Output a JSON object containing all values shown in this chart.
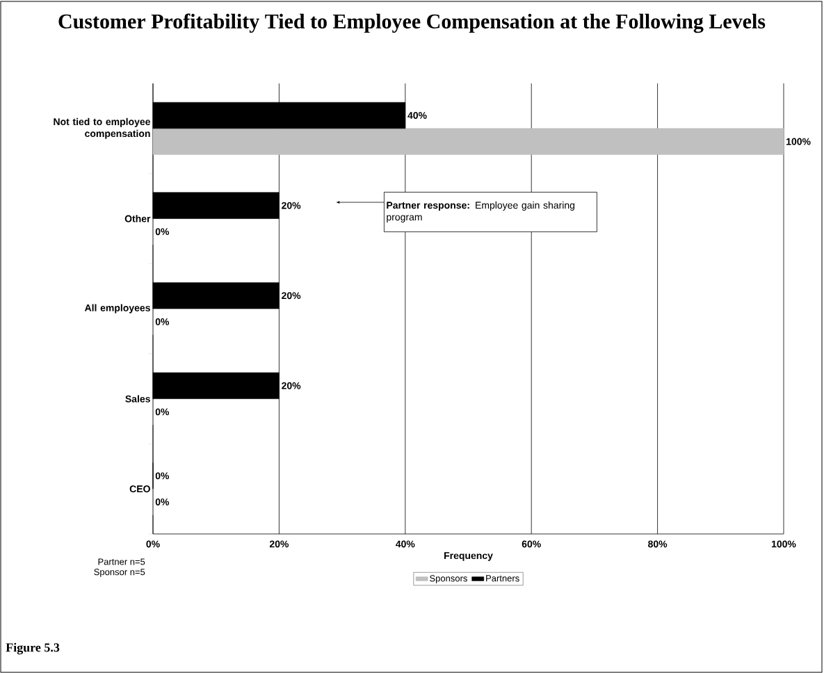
{
  "chart_data": {
    "type": "bar",
    "orientation": "horizontal",
    "title": "Customer Profitability Tied to Employee Compensation at the Following Levels",
    "xlabel": "Frequency",
    "categories": [
      "Not tied to employee compensation",
      "Other",
      "All employees",
      "Sales",
      "CEO"
    ],
    "series": [
      {
        "name": "Sponsors",
        "color": "#c0c0c0",
        "values": [
          100,
          0,
          0,
          0,
          0
        ],
        "value_labels": [
          "100%",
          "0%",
          "0%",
          "0%",
          "0%"
        ]
      },
      {
        "name": "Partners",
        "color": "#000000",
        "values": [
          40,
          20,
          20,
          20,
          0
        ],
        "value_labels": [
          "40%",
          "20%",
          "20%",
          "20%",
          "0%"
        ]
      }
    ],
    "xlim": [
      0,
      100
    ],
    "xticks": [
      {
        "value": 0,
        "label": "0%"
      },
      {
        "value": 20,
        "label": "20%"
      },
      {
        "value": 40,
        "label": "40%"
      },
      {
        "value": 60,
        "label": "60%"
      },
      {
        "value": 80,
        "label": "80%"
      },
      {
        "value": 100,
        "label": "100%"
      }
    ],
    "grid": "x",
    "legend": "bottom",
    "annotations": [
      "**Partner response:** Employee gain sharing program",
      "Partner n=5",
      "Sponsor n=5",
      "Figure 5.3"
    ]
  }
}
